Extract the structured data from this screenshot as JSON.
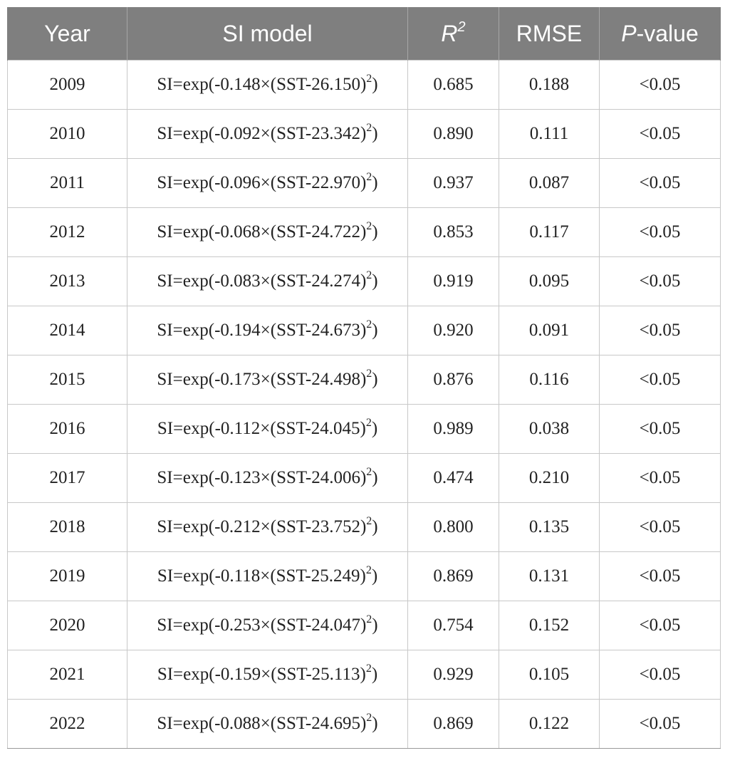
{
  "table": {
    "headers": {
      "year": "Year",
      "model": "SI model",
      "r2_base": "R",
      "r2_sup": "2",
      "rmse": "RMSE",
      "p_italic": "P",
      "p_rest": "-value"
    },
    "rows": [
      {
        "year": "2009",
        "model": "SI=exp(-0.148×(SST-26.150)",
        "exp": "2",
        "close": ")",
        "r2": "0.685",
        "rmse": "0.188",
        "p": "<0.05"
      },
      {
        "year": "2010",
        "model": "SI=exp(-0.092×(SST-23.342)",
        "exp": "2",
        "close": ")",
        "r2": "0.890",
        "rmse": "0.111",
        "p": "<0.05"
      },
      {
        "year": "2011",
        "model": "SI=exp(-0.096×(SST-22.970)",
        "exp": "2",
        "close": ")",
        "r2": "0.937",
        "rmse": "0.087",
        "p": "<0.05"
      },
      {
        "year": "2012",
        "model": "SI=exp(-0.068×(SST-24.722)",
        "exp": "2",
        "close": ")",
        "r2": "0.853",
        "rmse": "0.117",
        "p": "<0.05"
      },
      {
        "year": "2013",
        "model": "SI=exp(-0.083×(SST-24.274)",
        "exp": "2",
        "close": ")",
        "r2": "0.919",
        "rmse": "0.095",
        "p": "<0.05"
      },
      {
        "year": "2014",
        "model": "SI=exp(-0.194×(SST-24.673)",
        "exp": "2",
        "close": ")",
        "r2": "0.920",
        "rmse": "0.091",
        "p": "<0.05"
      },
      {
        "year": "2015",
        "model": "SI=exp(-0.173×(SST-24.498)",
        "exp": "2",
        "close": ")",
        "r2": "0.876",
        "rmse": "0.116",
        "p": "<0.05"
      },
      {
        "year": "2016",
        "model": "SI=exp(-0.112×(SST-24.045)",
        "exp": "2",
        "close": ")",
        "r2": "0.989",
        "rmse": "0.038",
        "p": "<0.05"
      },
      {
        "year": "2017",
        "model": "SI=exp(-0.123×(SST-24.006)",
        "exp": "2",
        "close": ")",
        "r2": "0.474",
        "rmse": "0.210",
        "p": "<0.05"
      },
      {
        "year": "2018",
        "model": "SI=exp(-0.212×(SST-23.752)",
        "exp": "2",
        "close": ")",
        "r2": "0.800",
        "rmse": "0.135",
        "p": "<0.05"
      },
      {
        "year": "2019",
        "model": "SI=exp(-0.118×(SST-25.249)",
        "exp": "2",
        "close": ")",
        "r2": "0.869",
        "rmse": "0.131",
        "p": "<0.05"
      },
      {
        "year": "2020",
        "model": "SI=exp(-0.253×(SST-24.047)",
        "exp": "2",
        "close": ")",
        "r2": "0.754",
        "rmse": "0.152",
        "p": "<0.05"
      },
      {
        "year": "2021",
        "model": "SI=exp(-0.159×(SST-25.113)",
        "exp": "2",
        "close": ")",
        "r2": "0.929",
        "rmse": "0.105",
        "p": "<0.05"
      },
      {
        "year": "2022",
        "model": "SI=exp(-0.088×(SST-24.695)",
        "exp": "2",
        "close": ")",
        "r2": "0.869",
        "rmse": "0.122",
        "p": "<0.05"
      }
    ]
  },
  "colors": {
    "header_bg": "#7f7f7f",
    "header_text": "#ffffff",
    "grid": "#c8c8c8"
  }
}
